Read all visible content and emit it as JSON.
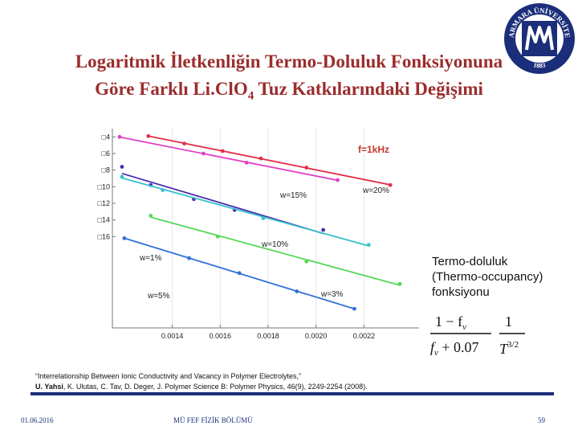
{
  "slide": {
    "title_line1": "Logaritmik İletkenliğin Termo-Doluluk Fonksiyonuna",
    "title_line2_main": "Göre Farklı Li.ClO",
    "title_line2_sub": "4",
    "title_line2_rest": " Tuz Katkılarındaki Değişimi",
    "logo_text": "MARMARA ÜNİVERSİTESİ",
    "logo_year": "1883",
    "side_note": [
      "Termo-doluluk",
      "(Thermo-occupancy)",
      "fonksiyonu"
    ],
    "formula": {
      "num_left": "1 − f",
      "num_left_sub": "v",
      "den_left": "f",
      "den_left_sub": "v",
      "den_left_rest": " + 0.07",
      "num_right": "1",
      "den_right": "T",
      "den_right_sup": "3/2"
    },
    "reference_line1": "“Interrelationship Between Ionic Conductivity and Vacancy in Polymer Electrolytes,”",
    "reference_author": "U. Yahsi",
    "reference_line2_rest": ", K. Ulutas, C. Tav, D. Deger,  J. Polymer Science B: Polymer Physics, 46(9), 2249-2254 (2008).",
    "footer_date": "01.06.2016",
    "footer_dept": "MÜ FEF FİZİK BÖLÜMÜ",
    "footer_page": "59"
  },
  "colors": {
    "title": "#9b2d2d",
    "rule": "#1b2e7a",
    "w20": "#e0304a",
    "w15": "#e040c8",
    "w10": "#4a2bb0",
    "w1": "#38c0cc",
    "w3": "#55d855",
    "w5": "#3070d8"
  },
  "chart_data": {
    "type": "scatter",
    "annotation": "f=1kHz",
    "xlim": [
      0.00115,
      0.00243
    ],
    "ylim": [
      -27,
      -3
    ],
    "x_ticks": [
      "0.0014",
      "0.0016",
      "0.0018",
      "0.0020",
      "0.0022"
    ],
    "x_tick_values": [
      0.0014,
      0.0016,
      0.0018,
      0.002,
      0.0022
    ],
    "y_ticks": [
      "□4",
      "□6",
      "□8",
      "□10",
      "□12",
      "□14",
      "□16"
    ],
    "y_tick_values": [
      -4,
      -6,
      -8,
      -10,
      -12,
      -14,
      -16
    ],
    "series": [
      {
        "name": "w=20%",
        "color": "#e0304a",
        "x": [
          0.0013,
          0.00145,
          0.00161,
          0.00177,
          0.00196,
          0.00231
        ],
        "y": [
          -3.9,
          -4.8,
          -5.7,
          -6.6,
          -7.7,
          -9.8
        ]
      },
      {
        "name": "w=15%",
        "color": "#e040c8",
        "x": [
          0.00118,
          0.00153,
          0.00171,
          0.00209
        ],
        "y": [
          -4.0,
          -6.0,
          -7.1,
          -9.2
        ]
      },
      {
        "name": "w=10%",
        "color": "#4a2bb0",
        "x": [
          0.00119,
          0.00131,
          0.00149,
          0.00166,
          0.00203
        ],
        "y": [
          -7.6,
          -9.8,
          -11.5,
          -12.8,
          -15.2
        ]
      },
      {
        "name": "w=1%",
        "color": "#38c0cc",
        "x": [
          0.00119,
          0.00136,
          0.00178,
          0.00222
        ],
        "y": [
          -8.8,
          -10.4,
          -13.8,
          -17.0
        ]
      },
      {
        "name": "w=3%",
        "color": "#55d855",
        "x": [
          0.00131,
          0.00159,
          0.00196,
          0.00235
        ],
        "y": [
          -13.5,
          -16.0,
          -19.0,
          -21.7
        ]
      },
      {
        "name": "w=5%",
        "color": "#3070d8",
        "x": [
          0.0012,
          0.00147,
          0.00168,
          0.00192,
          0.00216
        ],
        "y": [
          -16.2,
          -18.6,
          -20.4,
          -22.6,
          -24.7
        ]
      }
    ]
  }
}
